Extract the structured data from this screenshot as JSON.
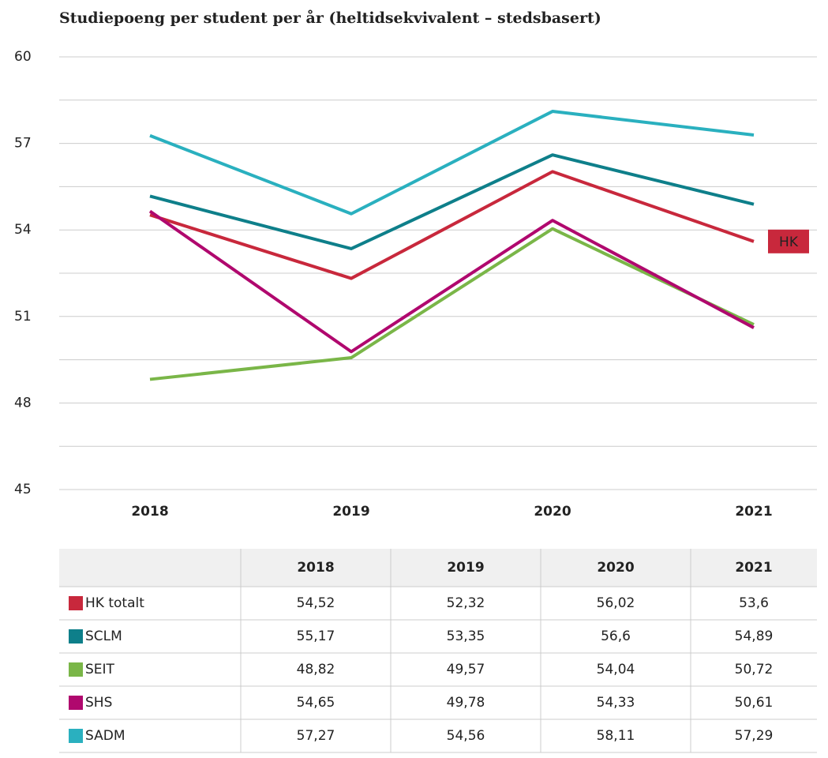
{
  "chart_data": {
    "type": "line",
    "title": "Studiepoeng per student per år (heltidsekvivalent – stedsbasert)",
    "categories": [
      "2018",
      "2019",
      "2020",
      "2021"
    ],
    "ylim": [
      45,
      60
    ],
    "yticks": [
      45,
      48,
      51,
      54,
      57,
      60
    ],
    "grid": true,
    "annotation": "HK",
    "series": [
      {
        "name": "HK totalt",
        "color": "#c8283c",
        "values": [
          54.52,
          52.32,
          56.02,
          53.6
        ],
        "value_labels": [
          "54,52",
          "52,32",
          "56,02",
          "53,6"
        ]
      },
      {
        "name": "SCLM",
        "color": "#0e7f8a",
        "values": [
          55.17,
          53.35,
          56.6,
          54.89
        ],
        "value_labels": [
          "55,17",
          "53,35",
          "56,6",
          "54,89"
        ]
      },
      {
        "name": "SEIT",
        "color": "#7ab648",
        "values": [
          48.82,
          49.57,
          54.04,
          50.72
        ],
        "value_labels": [
          "48,82",
          "49,57",
          "54,04",
          "50,72"
        ]
      },
      {
        "name": "SHS",
        "color": "#b0086e",
        "values": [
          54.65,
          49.78,
          54.33,
          50.61
        ],
        "value_labels": [
          "54,65",
          "49,78",
          "54,33",
          "50,61"
        ]
      },
      {
        "name": "SADM",
        "color": "#2ab0bf",
        "values": [
          57.27,
          54.56,
          58.11,
          57.29
        ],
        "value_labels": [
          "57,27",
          "54,56",
          "58,11",
          "57,29"
        ]
      }
    ]
  }
}
